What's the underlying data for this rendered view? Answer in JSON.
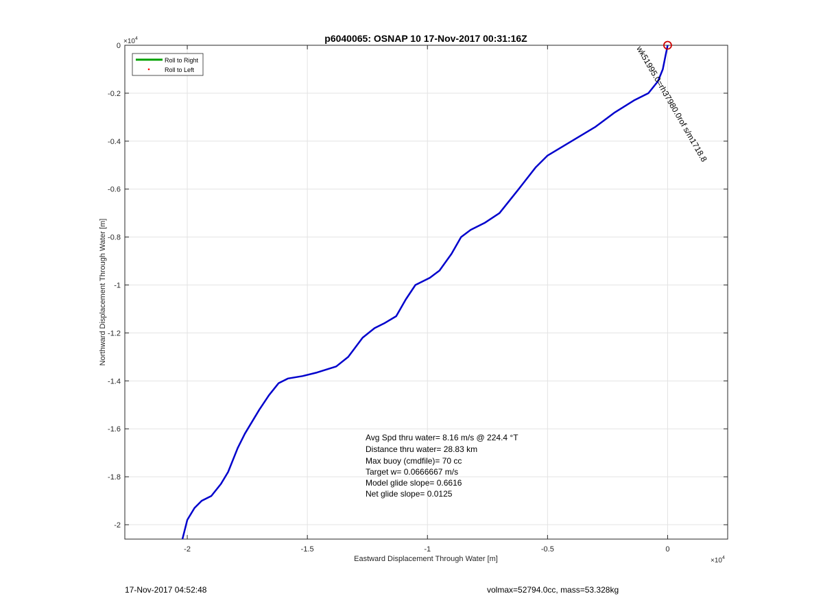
{
  "chart_data": {
    "type": "line",
    "title": "p6040065: OSNAP 10 17-Nov-2017 00:31:16Z",
    "xlabel": "Eastward Displacement Through Water [m]",
    "ylabel": "Northward Displacement Through Water [m]",
    "x_exponent_label": "×10",
    "y_exponent_label": "×10",
    "exponent_power": "4",
    "xlim": [
      -2.26,
      0.25
    ],
    "ylim": [
      -2.06,
      0.0
    ],
    "xticks": [
      -2,
      -1.5,
      -1,
      -0.5,
      0
    ],
    "xtick_labels": [
      "-2",
      "-1.5",
      "-1",
      "-0.5",
      "0"
    ],
    "yticks": [
      0,
      -0.2,
      -0.4,
      -0.6,
      -0.8,
      -1,
      -1.2,
      -1.4,
      -1.6,
      -1.8,
      -2
    ],
    "ytick_labels": [
      "0",
      "-0.2",
      "-0.4",
      "-0.6",
      "-0.8",
      "-1",
      "-1.2",
      "-1.4",
      "-1.6",
      "-1.8",
      "-2"
    ],
    "grid": true,
    "legend": {
      "placement": "top-left",
      "entries": [
        {
          "label": "Roll to Right",
          "color": "#00a000",
          "style": "line"
        },
        {
          "label": "Roll to Left",
          "color": "#ff0000",
          "style": "dot"
        }
      ]
    },
    "series": [
      {
        "color": "#0000cc",
        "x": [
          0.0,
          -0.01,
          -0.02,
          -0.04,
          -0.08,
          -0.14,
          -0.22,
          -0.3,
          -0.4,
          -0.5,
          -0.55,
          -0.62,
          -0.7,
          -0.76,
          -0.82,
          -0.86,
          -0.9,
          -0.95,
          -0.99,
          -1.05,
          -1.09,
          -1.13,
          -1.18,
          -1.22,
          -1.27,
          -1.33,
          -1.38,
          -1.46,
          -1.52,
          -1.58,
          -1.62,
          -1.66,
          -1.7,
          -1.76,
          -1.79,
          -1.83,
          -1.86,
          -1.9,
          -1.94,
          -1.97,
          -2.0,
          -2.02
        ],
        "y": [
          0.0,
          -0.05,
          -0.1,
          -0.15,
          -0.2,
          -0.23,
          -0.28,
          -0.34,
          -0.4,
          -0.46,
          -0.51,
          -0.6,
          -0.7,
          -0.74,
          -0.77,
          -0.8,
          -0.87,
          -0.94,
          -0.97,
          -1.0,
          -1.06,
          -1.13,
          -1.16,
          -1.18,
          -1.22,
          -1.3,
          -1.34,
          -1.365,
          -1.38,
          -1.39,
          -1.41,
          -1.46,
          -1.52,
          -1.62,
          -1.68,
          -1.78,
          -1.83,
          -1.88,
          -1.9,
          -1.93,
          -1.98,
          -2.06
        ]
      }
    ],
    "start_marker": {
      "x": 0.0,
      "y": 0.0,
      "color": "#cc0000"
    },
    "track_label": {
      "text": "wk51995.0=rh37980.0rof s/m1718.8",
      "x": -0.13,
      "y": -0.012,
      "angle_deg": 60
    },
    "annotations": [
      "Avg Spd thru water=  8.16 m/s @ 224.4 °T",
      "Distance thru water= 28.83 km",
      "Max buoy (cmdfile)= 70 cc",
      "Target w= 0.0666667 m/s",
      "Model glide slope= 0.6616",
      "Net glide slope= 0.0125"
    ]
  },
  "footer": {
    "date": "17-Nov-2017 04:52:48",
    "volmax": "volmax=52794.0cc, mass=53.328kg"
  }
}
